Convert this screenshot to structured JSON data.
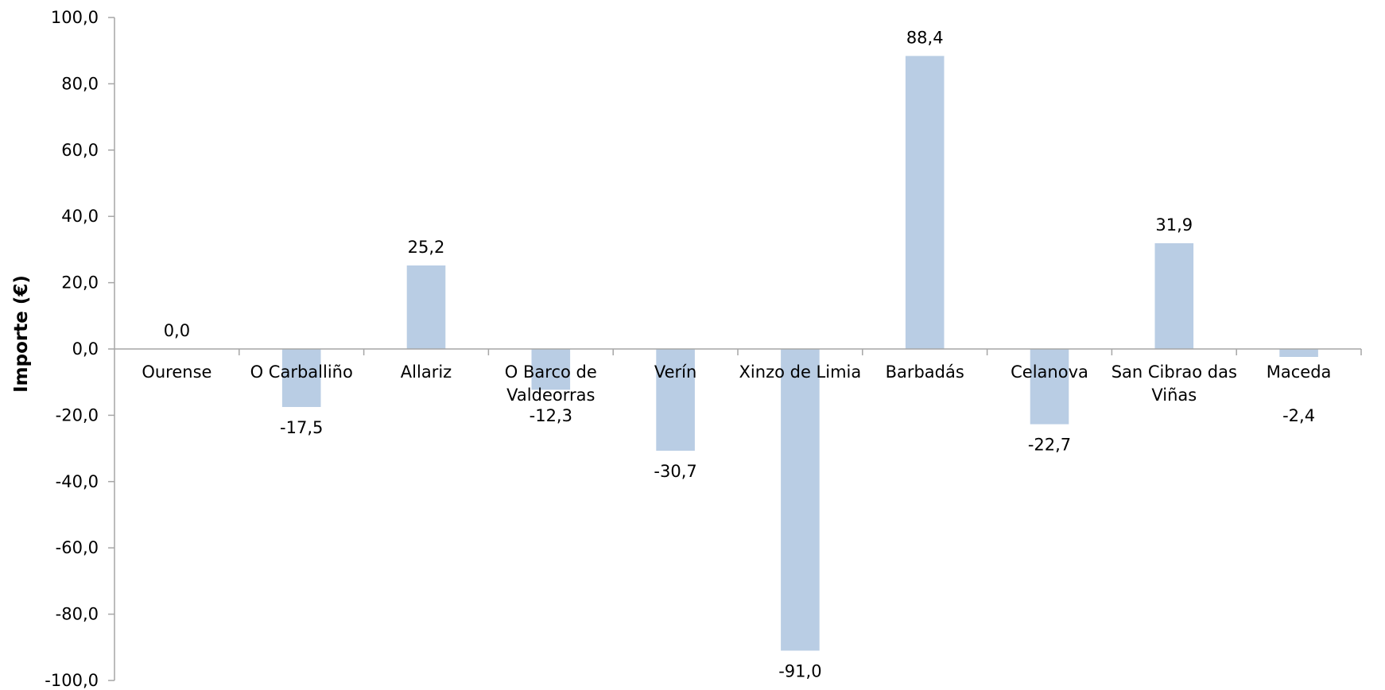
{
  "chart_data": {
    "type": "bar",
    "title": "",
    "xlabel": "",
    "ylabel": "Importe (€)",
    "ylim": [
      -100,
      100
    ],
    "ytick_step": 20,
    "yticks": [
      "100,0",
      "80,0",
      "60,0",
      "40,0",
      "20,0",
      "0,0",
      "-20,0",
      "-40,0",
      "-60,0",
      "-80,0",
      "-100,0"
    ],
    "categories": [
      [
        "Ourense"
      ],
      [
        "O Carballiño"
      ],
      [
        "Allariz"
      ],
      [
        "O Barco de",
        "Valdeorras"
      ],
      [
        "Verín"
      ],
      [
        "Xinzo de Limia"
      ],
      [
        "Barbadás"
      ],
      [
        "Celanova"
      ],
      [
        "San Cibrao das",
        "Viñas"
      ],
      [
        "Maceda"
      ]
    ],
    "values": [
      0.0,
      -17.5,
      25.2,
      -12.3,
      -30.7,
      -91.0,
      88.4,
      -22.7,
      31.9,
      -2.4
    ],
    "data_labels": [
      "0,0",
      "-17,5",
      "25,2",
      "-12,3",
      "-30,7",
      "-91,0",
      "88,4",
      "-22,7",
      "31,9",
      "-2,4"
    ],
    "bar_color": "#b9cde4",
    "axis_color": "#a6a6a6",
    "grid": false,
    "legend": "none"
  }
}
